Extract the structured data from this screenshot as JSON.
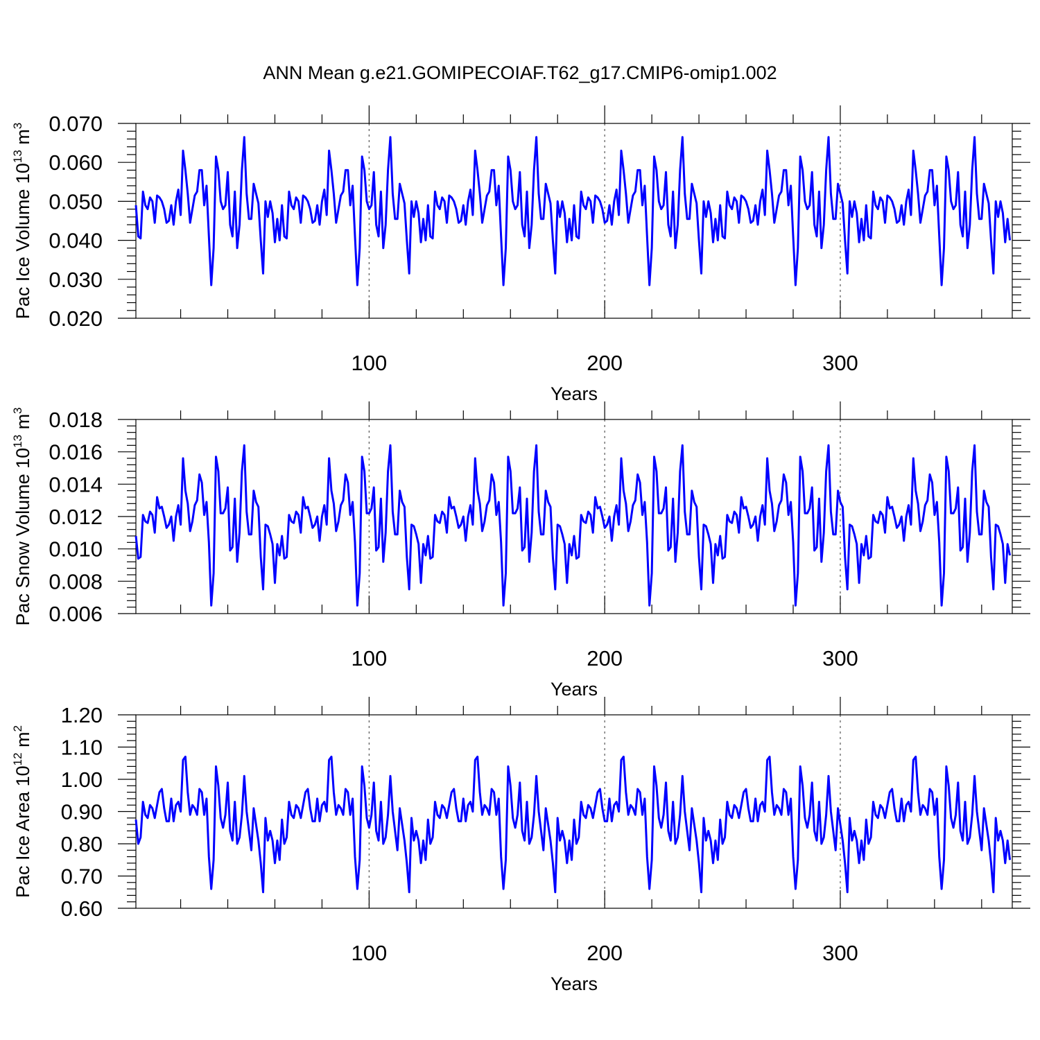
{
  "colors": {
    "line": "#0000FF",
    "axes": "#000000",
    "grid": "#555555"
  },
  "chart_data": {
    "title": "ANN Mean g.e21.GOMIPECOIAF.T62_g17.CMIP6-omip1.002",
    "type": "line",
    "panels": [
      {
        "type": "line",
        "xlabel": "Years",
        "ylabel_prefix": "Pac Ice Volume 10",
        "ylabel_exp": "13",
        "ylabel_unit": " m",
        "ylabel_unit_exp": "3",
        "xlim": [
          1,
          373
        ],
        "ylim": [
          0.02,
          0.07
        ],
        "yticks": [
          0.02,
          0.03,
          0.04,
          0.05,
          0.06,
          0.07
        ],
        "ytick_labels": [
          "0.020",
          "0.030",
          "0.040",
          "0.050",
          "0.060",
          "0.070"
        ],
        "xticks": [
          100,
          200,
          300
        ],
        "xtick_labels": [
          "100",
          "200",
          "300"
        ],
        "cycle_start": 1,
        "cycle_length": 62,
        "cycles": 6,
        "values": [
          0.049,
          0.041,
          0.0405,
          0.0525,
          0.049,
          0.048,
          0.051,
          0.05,
          0.0445,
          0.0515,
          0.051,
          0.05,
          0.048,
          0.0445,
          0.045,
          0.049,
          0.044,
          0.05,
          0.053,
          0.0465,
          0.063,
          0.058,
          0.052,
          0.0445,
          0.048,
          0.0515,
          0.0525,
          0.058,
          0.058,
          0.049,
          0.054,
          0.041,
          0.0285,
          0.038,
          0.0615,
          0.058,
          0.05,
          0.048,
          0.049,
          0.0575,
          0.044,
          0.041,
          0.0525,
          0.038,
          0.044,
          0.058,
          0.0665,
          0.052,
          0.0455,
          0.0455,
          0.0545,
          0.052,
          0.0495,
          0.04,
          0.0315,
          0.05,
          0.046,
          0.05,
          0.047,
          0.0395,
          0.0455,
          0.04
        ]
      },
      {
        "type": "line",
        "xlabel": "Years",
        "ylabel_prefix": "Pac Snow Volume 10",
        "ylabel_exp": "13",
        "ylabel_unit": " m",
        "ylabel_unit_exp": "3",
        "xlim": [
          1,
          373
        ],
        "ylim": [
          0.006,
          0.018
        ],
        "yticks": [
          0.006,
          0.008,
          0.01,
          0.012,
          0.014,
          0.016,
          0.018
        ],
        "ytick_labels": [
          "0.006",
          "0.008",
          "0.010",
          "0.012",
          "0.014",
          "0.016",
          "0.018"
        ],
        "xticks": [
          100,
          200,
          300
        ],
        "xtick_labels": [
          "100",
          "200",
          "300"
        ],
        "cycle_start": 1,
        "cycle_length": 62,
        "cycles": 6,
        "values": [
          0.0108,
          0.0094,
          0.0095,
          0.0121,
          0.0117,
          0.0116,
          0.0123,
          0.0121,
          0.011,
          0.0132,
          0.0125,
          0.0126,
          0.012,
          0.0113,
          0.0115,
          0.012,
          0.0105,
          0.012,
          0.0127,
          0.0115,
          0.0156,
          0.0136,
          0.0128,
          0.0111,
          0.0117,
          0.0127,
          0.013,
          0.0146,
          0.0141,
          0.0121,
          0.0129,
          0.0104,
          0.0065,
          0.0085,
          0.0157,
          0.0148,
          0.0122,
          0.0122,
          0.0125,
          0.0138,
          0.0099,
          0.0101,
          0.0131,
          0.0092,
          0.011,
          0.0148,
          0.0164,
          0.0123,
          0.0109,
          0.0109,
          0.0136,
          0.0129,
          0.0126,
          0.0095,
          0.0075,
          0.0115,
          0.0114,
          0.0109,
          0.0103,
          0.0079,
          0.0103,
          0.0096
        ]
      },
      {
        "type": "line",
        "xlabel": "Years",
        "ylabel_prefix": "Pac Ice Area 10",
        "ylabel_exp": "12",
        "ylabel_unit": " m",
        "ylabel_unit_exp": "2",
        "xlim": [
          1,
          373
        ],
        "ylim": [
          0.6,
          1.2
        ],
        "yticks": [
          0.6,
          0.7,
          0.8,
          0.9,
          1.0,
          1.1,
          1.2
        ],
        "ytick_labels": [
          "0.60",
          "0.70",
          "0.80",
          "0.90",
          "1.00",
          "1.10",
          "1.20"
        ],
        "xticks": [
          100,
          200,
          300
        ],
        "xtick_labels": [
          "100",
          "200",
          "300"
        ],
        "cycle_start": 1,
        "cycle_length": 62,
        "cycles": 6,
        "values": [
          0.875,
          0.8,
          0.82,
          0.93,
          0.89,
          0.88,
          0.92,
          0.91,
          0.88,
          0.92,
          0.96,
          0.97,
          0.91,
          0.87,
          0.87,
          0.94,
          0.87,
          0.92,
          0.93,
          0.9,
          1.06,
          1.07,
          0.96,
          0.89,
          0.92,
          0.91,
          0.89,
          0.97,
          0.96,
          0.89,
          0.94,
          0.76,
          0.66,
          0.75,
          1.04,
          0.98,
          0.88,
          0.85,
          0.89,
          0.99,
          0.84,
          0.81,
          0.93,
          0.8,
          0.82,
          0.89,
          1.01,
          0.9,
          0.84,
          0.78,
          0.91,
          0.86,
          0.81,
          0.74,
          0.65,
          0.88,
          0.81,
          0.84,
          0.81,
          0.74,
          0.81,
          0.75
        ]
      }
    ]
  }
}
